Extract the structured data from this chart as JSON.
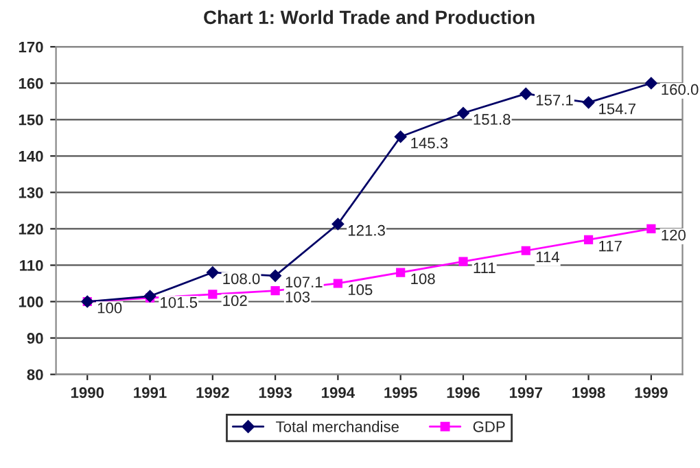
{
  "chart_data": {
    "type": "line",
    "title": "Chart 1: World Trade and Production",
    "categories": [
      "1990",
      "1991",
      "1992",
      "1993",
      "1994",
      "1995",
      "1996",
      "1997",
      "1998",
      "1999"
    ],
    "series": [
      {
        "name": "Total merchandise",
        "color": "#000066",
        "marker": "diamond",
        "values": [
          100,
          101.5,
          108.0,
          107.1,
          121.3,
          145.3,
          151.8,
          157.1,
          154.7,
          160.0
        ],
        "value_labels": [
          null,
          "101.5",
          "108.0",
          "107.1",
          "121.3",
          "145.3",
          "151.8",
          "157.1",
          "154.7",
          "160.0"
        ]
      },
      {
        "name": "GDP",
        "color": "#ff00ff",
        "marker": "square",
        "values": [
          100,
          101,
          102,
          103,
          105,
          108,
          111,
          114,
          117,
          120
        ],
        "value_labels": [
          "100",
          null,
          "102",
          "103",
          "105",
          "108",
          "111",
          "114",
          "117",
          "120"
        ]
      }
    ],
    "ylim": [
      80,
      170
    ],
    "yticks": [
      80,
      90,
      100,
      110,
      120,
      130,
      140,
      150,
      160,
      170
    ],
    "grid": "y",
    "legend": "bottom"
  }
}
